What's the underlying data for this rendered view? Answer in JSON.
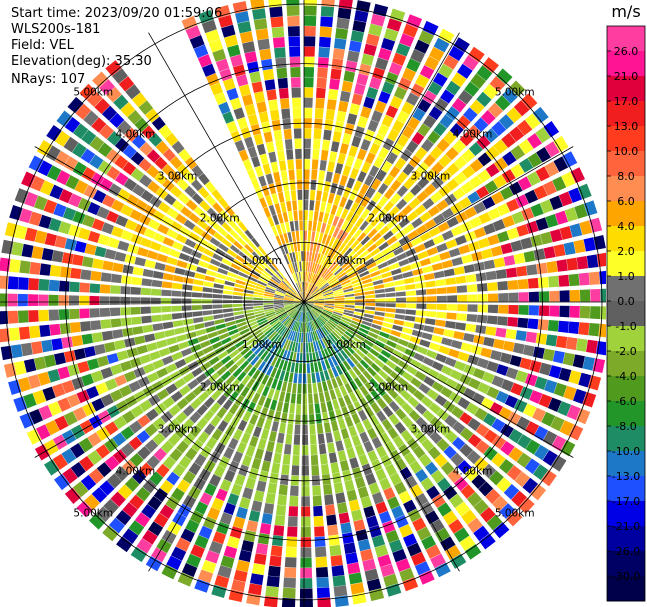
{
  "header": {
    "start_time": "Start time: 2023/09/20 01:59:06",
    "instrument": "WLS200s-181",
    "field": "Field: VEL",
    "elevation": "Elevation(deg): 35.30",
    "nrays": "NRays: 107"
  },
  "chart_data": {
    "type": "heatmap",
    "projection": "polar PPI scan",
    "field": "VEL",
    "units": "m/s",
    "elevation_deg": 35.3,
    "nrays": 107,
    "range_rings_km": [
      1.0,
      2.0,
      3.0,
      4.0,
      5.0
    ],
    "ring_labels": [
      "1.00km",
      "2.00km",
      "3.00km",
      "4.00km",
      "5.00km"
    ],
    "max_range_km": 5.15,
    "data_gap_azimuth_deg": [
      322,
      335
    ],
    "colorbar": {
      "title": "m/s",
      "ticks": [
        "26.0",
        "21.0",
        "17.0",
        "13.0",
        "10.0",
        "8.0",
        "6.0",
        "4.0",
        "2.0",
        "1.0",
        "0.0",
        "-1.0",
        "-2.0",
        "-4.0",
        "-6.0",
        "-8.0",
        "-10.0",
        "-13.0",
        "-17.0",
        "-21.0",
        "-26.0",
        "-30.0"
      ],
      "colors": [
        "#ff3ca0",
        "#ff1493",
        "#e0003c",
        "#f01e1e",
        "#ff3c1e",
        "#ff643c",
        "#ff8c50",
        "#ffa500",
        "#ffdc00",
        "#ffff28",
        "#707070",
        "#606060",
        "#a0d23c",
        "#7daa28",
        "#509b1e",
        "#229628",
        "#1e8c64",
        "#1e78c8",
        "#1e50ff",
        "#0000e6",
        "#0000a0",
        "#000064",
        "#00004a"
      ]
    },
    "wind_pattern": {
      "north_east_sector": "positive 1 to 6 m/s (yellow/orange)",
      "south_sector": "negative -2 to -8 m/s (green/teal)",
      "outer_range": "noisy, full colour range"
    }
  }
}
